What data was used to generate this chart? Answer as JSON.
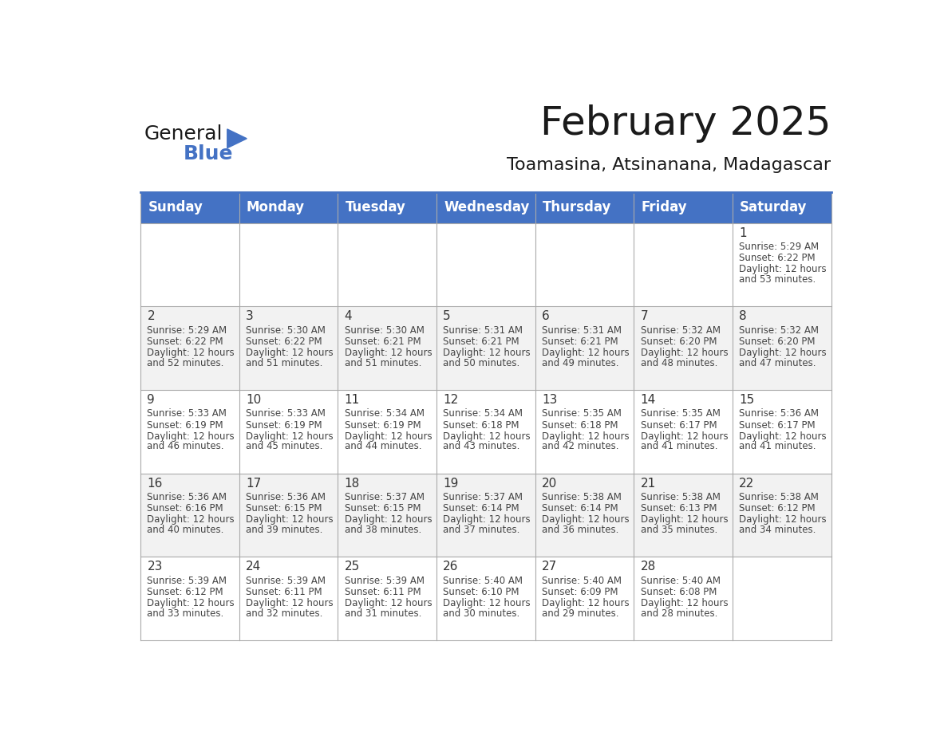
{
  "title": "February 2025",
  "subtitle": "Toamasina, Atsinanana, Madagascar",
  "header_color": "#4472C4",
  "header_text_color": "#FFFFFF",
  "bg_color": "#FFFFFF",
  "cell_bg_even": "#F2F2F2",
  "cell_bg_odd": "#FFFFFF",
  "day_names": [
    "Sunday",
    "Monday",
    "Tuesday",
    "Wednesday",
    "Thursday",
    "Friday",
    "Saturday"
  ],
  "days": [
    {
      "day": 1,
      "col": 6,
      "row": 0,
      "sunrise": "5:29 AM",
      "sunset": "6:22 PM",
      "daylight_hours": 12,
      "daylight_minutes": 53
    },
    {
      "day": 2,
      "col": 0,
      "row": 1,
      "sunrise": "5:29 AM",
      "sunset": "6:22 PM",
      "daylight_hours": 12,
      "daylight_minutes": 52
    },
    {
      "day": 3,
      "col": 1,
      "row": 1,
      "sunrise": "5:30 AM",
      "sunset": "6:22 PM",
      "daylight_hours": 12,
      "daylight_minutes": 51
    },
    {
      "day": 4,
      "col": 2,
      "row": 1,
      "sunrise": "5:30 AM",
      "sunset": "6:21 PM",
      "daylight_hours": 12,
      "daylight_minutes": 51
    },
    {
      "day": 5,
      "col": 3,
      "row": 1,
      "sunrise": "5:31 AM",
      "sunset": "6:21 PM",
      "daylight_hours": 12,
      "daylight_minutes": 50
    },
    {
      "day": 6,
      "col": 4,
      "row": 1,
      "sunrise": "5:31 AM",
      "sunset": "6:21 PM",
      "daylight_hours": 12,
      "daylight_minutes": 49
    },
    {
      "day": 7,
      "col": 5,
      "row": 1,
      "sunrise": "5:32 AM",
      "sunset": "6:20 PM",
      "daylight_hours": 12,
      "daylight_minutes": 48
    },
    {
      "day": 8,
      "col": 6,
      "row": 1,
      "sunrise": "5:32 AM",
      "sunset": "6:20 PM",
      "daylight_hours": 12,
      "daylight_minutes": 47
    },
    {
      "day": 9,
      "col": 0,
      "row": 2,
      "sunrise": "5:33 AM",
      "sunset": "6:19 PM",
      "daylight_hours": 12,
      "daylight_minutes": 46
    },
    {
      "day": 10,
      "col": 1,
      "row": 2,
      "sunrise": "5:33 AM",
      "sunset": "6:19 PM",
      "daylight_hours": 12,
      "daylight_minutes": 45
    },
    {
      "day": 11,
      "col": 2,
      "row": 2,
      "sunrise": "5:34 AM",
      "sunset": "6:19 PM",
      "daylight_hours": 12,
      "daylight_minutes": 44
    },
    {
      "day": 12,
      "col": 3,
      "row": 2,
      "sunrise": "5:34 AM",
      "sunset": "6:18 PM",
      "daylight_hours": 12,
      "daylight_minutes": 43
    },
    {
      "day": 13,
      "col": 4,
      "row": 2,
      "sunrise": "5:35 AM",
      "sunset": "6:18 PM",
      "daylight_hours": 12,
      "daylight_minutes": 42
    },
    {
      "day": 14,
      "col": 5,
      "row": 2,
      "sunrise": "5:35 AM",
      "sunset": "6:17 PM",
      "daylight_hours": 12,
      "daylight_minutes": 41
    },
    {
      "day": 15,
      "col": 6,
      "row": 2,
      "sunrise": "5:36 AM",
      "sunset": "6:17 PM",
      "daylight_hours": 12,
      "daylight_minutes": 41
    },
    {
      "day": 16,
      "col": 0,
      "row": 3,
      "sunrise": "5:36 AM",
      "sunset": "6:16 PM",
      "daylight_hours": 12,
      "daylight_minutes": 40
    },
    {
      "day": 17,
      "col": 1,
      "row": 3,
      "sunrise": "5:36 AM",
      "sunset": "6:15 PM",
      "daylight_hours": 12,
      "daylight_minutes": 39
    },
    {
      "day": 18,
      "col": 2,
      "row": 3,
      "sunrise": "5:37 AM",
      "sunset": "6:15 PM",
      "daylight_hours": 12,
      "daylight_minutes": 38
    },
    {
      "day": 19,
      "col": 3,
      "row": 3,
      "sunrise": "5:37 AM",
      "sunset": "6:14 PM",
      "daylight_hours": 12,
      "daylight_minutes": 37
    },
    {
      "day": 20,
      "col": 4,
      "row": 3,
      "sunrise": "5:38 AM",
      "sunset": "6:14 PM",
      "daylight_hours": 12,
      "daylight_minutes": 36
    },
    {
      "day": 21,
      "col": 5,
      "row": 3,
      "sunrise": "5:38 AM",
      "sunset": "6:13 PM",
      "daylight_hours": 12,
      "daylight_minutes": 35
    },
    {
      "day": 22,
      "col": 6,
      "row": 3,
      "sunrise": "5:38 AM",
      "sunset": "6:12 PM",
      "daylight_hours": 12,
      "daylight_minutes": 34
    },
    {
      "day": 23,
      "col": 0,
      "row": 4,
      "sunrise": "5:39 AM",
      "sunset": "6:12 PM",
      "daylight_hours": 12,
      "daylight_minutes": 33
    },
    {
      "day": 24,
      "col": 1,
      "row": 4,
      "sunrise": "5:39 AM",
      "sunset": "6:11 PM",
      "daylight_hours": 12,
      "daylight_minutes": 32
    },
    {
      "day": 25,
      "col": 2,
      "row": 4,
      "sunrise": "5:39 AM",
      "sunset": "6:11 PM",
      "daylight_hours": 12,
      "daylight_minutes": 31
    },
    {
      "day": 26,
      "col": 3,
      "row": 4,
      "sunrise": "5:40 AM",
      "sunset": "6:10 PM",
      "daylight_hours": 12,
      "daylight_minutes": 30
    },
    {
      "day": 27,
      "col": 4,
      "row": 4,
      "sunrise": "5:40 AM",
      "sunset": "6:09 PM",
      "daylight_hours": 12,
      "daylight_minutes": 29
    },
    {
      "day": 28,
      "col": 5,
      "row": 4,
      "sunrise": "5:40 AM",
      "sunset": "6:08 PM",
      "daylight_hours": 12,
      "daylight_minutes": 28
    }
  ],
  "num_rows": 5,
  "num_cols": 7,
  "logo_text_general": "General",
  "logo_text_blue": "Blue",
  "logo_color_general": "#1a1a1a",
  "logo_color_blue": "#4472C4",
  "logo_triangle_color": "#4472C4",
  "line_color": "#AAAAAA",
  "border_color": "#4472C4",
  "title_fontsize": 36,
  "subtitle_fontsize": 16,
  "header_fontsize": 12,
  "day_num_fontsize": 11,
  "cell_text_fontsize": 8.5
}
